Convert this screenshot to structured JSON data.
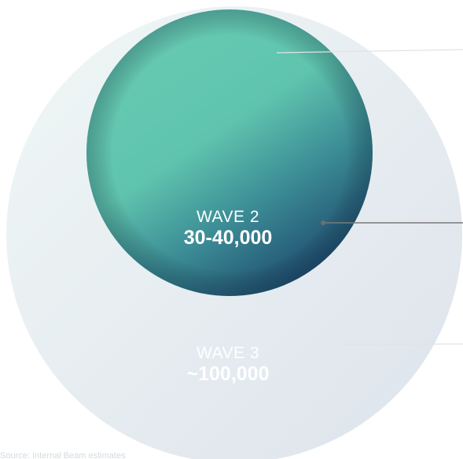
{
  "waves": [
    {
      "id": "wave-2",
      "name": "WAVE 2",
      "value": "30-40,000"
    },
    {
      "id": "wave-3",
      "name": "WAVE 3",
      "value": "~100,000"
    }
  ],
  "source": "Source: Internal Beam estimates",
  "colors": {
    "wave2_light": "#63c8b1",
    "wave2_dark": "#1f4f70",
    "wave3_light": "#eef5f6",
    "wave3_dark": "#dfe5ec",
    "leader_line": "#7a7a7a",
    "leader_line_light": "#dfe3e6"
  }
}
